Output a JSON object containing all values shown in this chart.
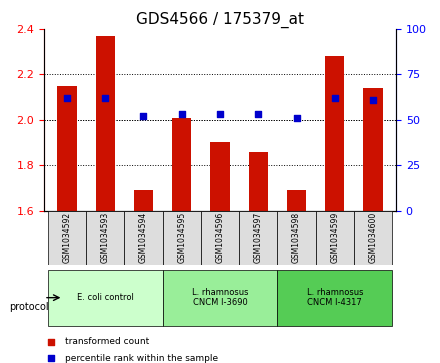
{
  "title": "GDS4566 / 175379_at",
  "samples": [
    "GSM1034592",
    "GSM1034593",
    "GSM1034594",
    "GSM1034595",
    "GSM1034596",
    "GSM1034597",
    "GSM1034598",
    "GSM1034599",
    "GSM1034600"
  ],
  "transformed_count": [
    2.15,
    2.37,
    1.69,
    2.01,
    1.9,
    1.86,
    1.69,
    2.28,
    2.14
  ],
  "percentile_rank": [
    62,
    62,
    52,
    53,
    53,
    53,
    51,
    62,
    61
  ],
  "ylim_left": [
    1.6,
    2.4
  ],
  "ylim_right": [
    0,
    100
  ],
  "yticks_left": [
    1.6,
    1.8,
    2.0,
    2.2,
    2.4
  ],
  "yticks_right": [
    0,
    25,
    50,
    75,
    100
  ],
  "bar_color": "#cc1100",
  "dot_color": "#0000cc",
  "bar_bottom": 1.6,
  "grid_lines": [
    1.8,
    2.0,
    2.2
  ],
  "protocol_groups": [
    {
      "label": "E. coli control",
      "samples": [
        0,
        1,
        2
      ],
      "color": "#ccffcc"
    },
    {
      "label": "L. rhamnosus\nCNCM I-3690",
      "samples": [
        3,
        4,
        5
      ],
      "color": "#99ee99"
    },
    {
      "label": "L. rhamnosus\nCNCM I-4317",
      "samples": [
        6,
        7,
        8
      ],
      "color": "#55cc55"
    }
  ],
  "legend_items": [
    {
      "label": "transformed count",
      "color": "#cc1100",
      "marker": "s"
    },
    {
      "label": "percentile rank within the sample",
      "color": "#0000cc",
      "marker": "s"
    }
  ],
  "background_color": "#ffffff",
  "plot_bg_color": "#ffffff",
  "title_fontsize": 11,
  "tick_label_fontsize": 7,
  "axis_label_fontsize": 8
}
